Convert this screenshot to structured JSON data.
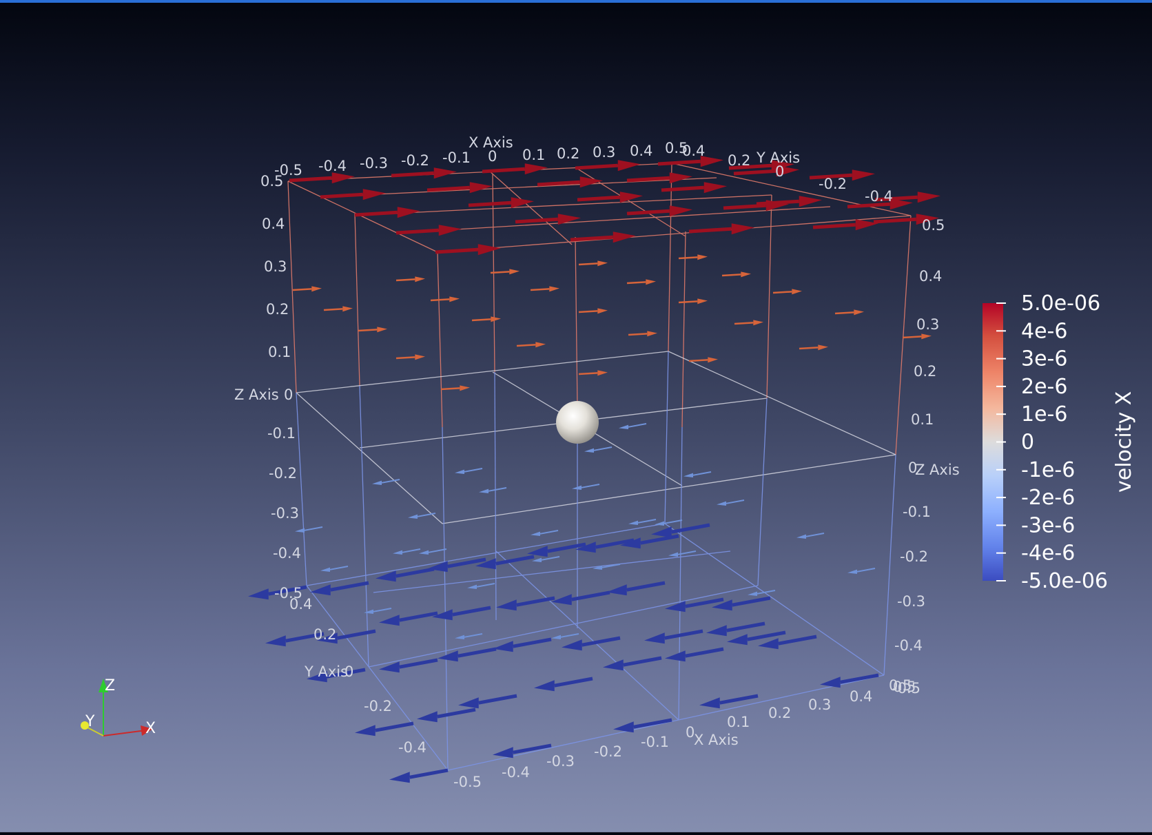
{
  "colors": {
    "selection_border": "#2a6fd6",
    "positive_arrows": "#9e1020",
    "positive_weak_arrows": "#d7643a",
    "negative_weak_arrows": "#7092d8",
    "negative_arrows": "#2c3aa0",
    "sphere": "#e8e6e0"
  },
  "axes": {
    "x_title_top": "X Axis",
    "x_title_bottom": "X Axis",
    "y_title_top": "Y Axis",
    "y_title_bottom": "Y Axis",
    "z_title_left": "Z Axis",
    "z_title_right": "Z Axis",
    "x_ticks_top": [
      "-0.5",
      "-0.4",
      "-0.3",
      "-0.2",
      "-0.1",
      "0",
      "0.1",
      "0.2",
      "0.3",
      "0.4",
      "0.5"
    ],
    "y_ticks_top": [
      "0.4",
      "0.2",
      "0",
      "-0.2",
      "-0.4"
    ],
    "z_ticks_left": [
      "0.5",
      "0.4",
      "0.3",
      "0.2",
      "0.1",
      "0",
      "-0.1",
      "-0.2",
      "-0.3",
      "-0.4",
      "-0.5"
    ],
    "z_ticks_right": [
      "0.5",
      "0.4",
      "0.3",
      "0.2",
      "0.1",
      "0",
      "-0.1",
      "-0.2",
      "-0.3",
      "-0.4",
      "-0.5"
    ],
    "y_ticks_bottom": [
      "0.4",
      "0.2",
      "0",
      "-0.2",
      "-0.4"
    ],
    "x_ticks_bottom": [
      "-0.5",
      "-0.4",
      "-0.3",
      "-0.2",
      "-0.1",
      "0",
      "0.1",
      "0.2",
      "0.3",
      "0.4",
      "0.5"
    ],
    "y_tick_bottom_right": "0.5"
  },
  "colorbar": {
    "title": "velocity X",
    "labels": [
      "5.0e-06",
      "4e-6",
      "3e-6",
      "2e-6",
      "1e-6",
      "0",
      "-1e-6",
      "-2e-6",
      "-3e-6",
      "-4e-6",
      "-5.0e-06"
    ],
    "gradient": [
      "#b40426",
      "#dc5d4a",
      "#f49a7b",
      "#f2cbb7",
      "#dddcdc",
      "#b9d0f9",
      "#8db0fe",
      "#6282ea",
      "#3b4cc0"
    ]
  },
  "orientation_axes": {
    "x": "X",
    "y": "Y",
    "z": "Z"
  }
}
